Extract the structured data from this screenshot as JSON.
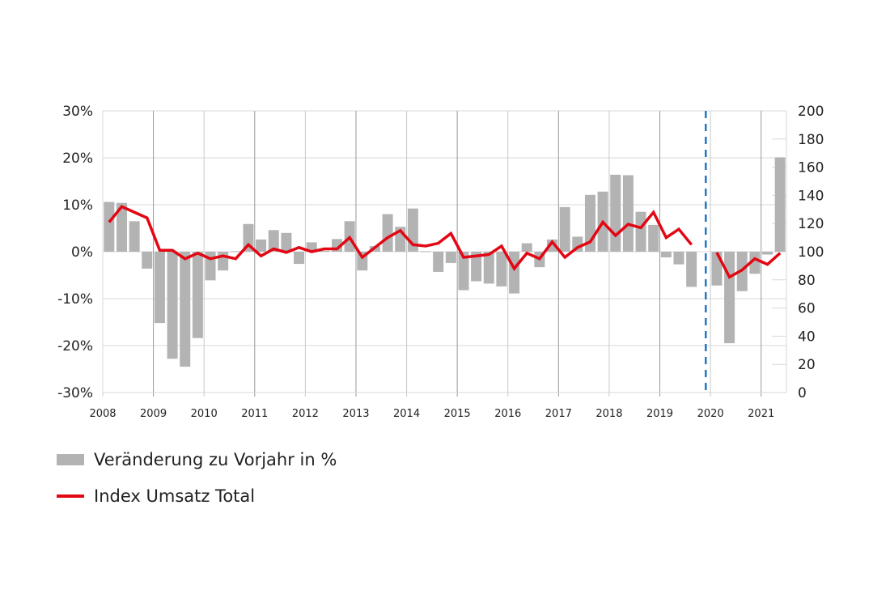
{
  "chart_data": {
    "type": "bar+line",
    "x_labels": [
      "2008",
      "2009",
      "2010",
      "2011",
      "2012",
      "2013",
      "2014",
      "2015",
      "2016",
      "2017",
      "2018",
      "2019",
      "2020",
      "2021"
    ],
    "periods": "quarterly",
    "left_axis": {
      "ticks": [
        "30%",
        "20%",
        "10%",
        "0%",
        "-10%",
        "-20%",
        "-30%"
      ],
      "ylim": [
        -30,
        30
      ]
    },
    "right_axis": {
      "ticks": [
        "200",
        "180",
        "160",
        "140",
        "120",
        "100",
        "80",
        "60",
        "40",
        "20",
        "0"
      ],
      "ylim": [
        0,
        200
      ]
    },
    "grid": true,
    "dashed_marker": {
      "between": "2019 Q3 and 2020 Q1",
      "color": "#1f77c4"
    },
    "series": [
      {
        "name": "Veränderung zu Vorjahr in %",
        "type": "bar",
        "axis": "left",
        "color": "#b3b3b3",
        "values": [
          10.6,
          10.4,
          6.5,
          -3.6,
          -15.2,
          -22.8,
          -24.5,
          -18.4,
          -6.1,
          -4.0,
          0.1,
          5.9,
          2.6,
          4.6,
          4.0,
          -2.6,
          2.0,
          0.2,
          2.7,
          6.5,
          -4.0,
          1.2,
          8.0,
          5.3,
          9.2,
          0.1,
          -4.3,
          -2.4,
          -8.2,
          -6.3,
          -6.8,
          -7.4,
          -8.9,
          1.8,
          -3.3,
          2.6,
          9.5,
          3.2,
          12.1,
          12.8,
          16.4,
          16.3,
          8.5,
          5.7,
          -1.2,
          -2.7,
          -7.5,
          null,
          -7.2,
          -19.5,
          -8.4,
          -4.7,
          -0.6,
          20.1
        ]
      },
      {
        "name": "Index Umsatz Total",
        "type": "line",
        "axis": "right",
        "color": "#e30613",
        "values": [
          121,
          132,
          128,
          124,
          101,
          101,
          95,
          99,
          95,
          97,
          95,
          105,
          97,
          102,
          99.5,
          103,
          100,
          102,
          102,
          110,
          96,
          103,
          110,
          115,
          105,
          104,
          106,
          113,
          96,
          97,
          98,
          104,
          88,
          99,
          95,
          107,
          96,
          103,
          107,
          121,
          111.5,
          119.5,
          117,
          128,
          110,
          116,
          105,
          null,
          99.4,
          82,
          87,
          95,
          91,
          99
        ]
      }
    ]
  }
}
